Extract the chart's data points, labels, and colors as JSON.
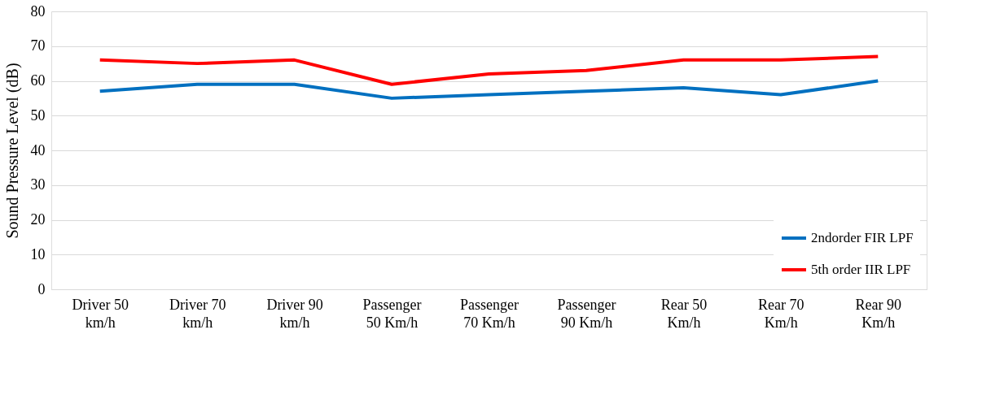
{
  "chart_data": {
    "type": "line",
    "ylabel": "Sound Pressure Level (dB)",
    "categories": [
      "Driver 50\nkm/h",
      "Driver 70\nkm/h",
      "Driver 90\nkm/h",
      "Passenger\n50 Km/h",
      "Passenger\n70 Km/h",
      "Passenger\n90 Km/h",
      "Rear 50\nKm/h",
      "Rear 70\nKm/h",
      "Rear 90\nKm/h"
    ],
    "series": [
      {
        "name": "2ndorder FIR LPF",
        "color": "#0070c0",
        "values": [
          57,
          59,
          59,
          55,
          56,
          57,
          58,
          56,
          60
        ]
      },
      {
        "name": "5th order IIR LPF",
        "color": "#ff0000",
        "values": [
          66,
          65,
          66,
          59,
          62,
          63,
          66,
          66,
          67
        ]
      }
    ],
    "ylim": [
      0,
      80
    ],
    "yticks": [
      0,
      10,
      20,
      30,
      40,
      50,
      60,
      70,
      80
    ],
    "grid": "y",
    "legend": "bottom right",
    "marker": "none",
    "line_style": "solid"
  }
}
